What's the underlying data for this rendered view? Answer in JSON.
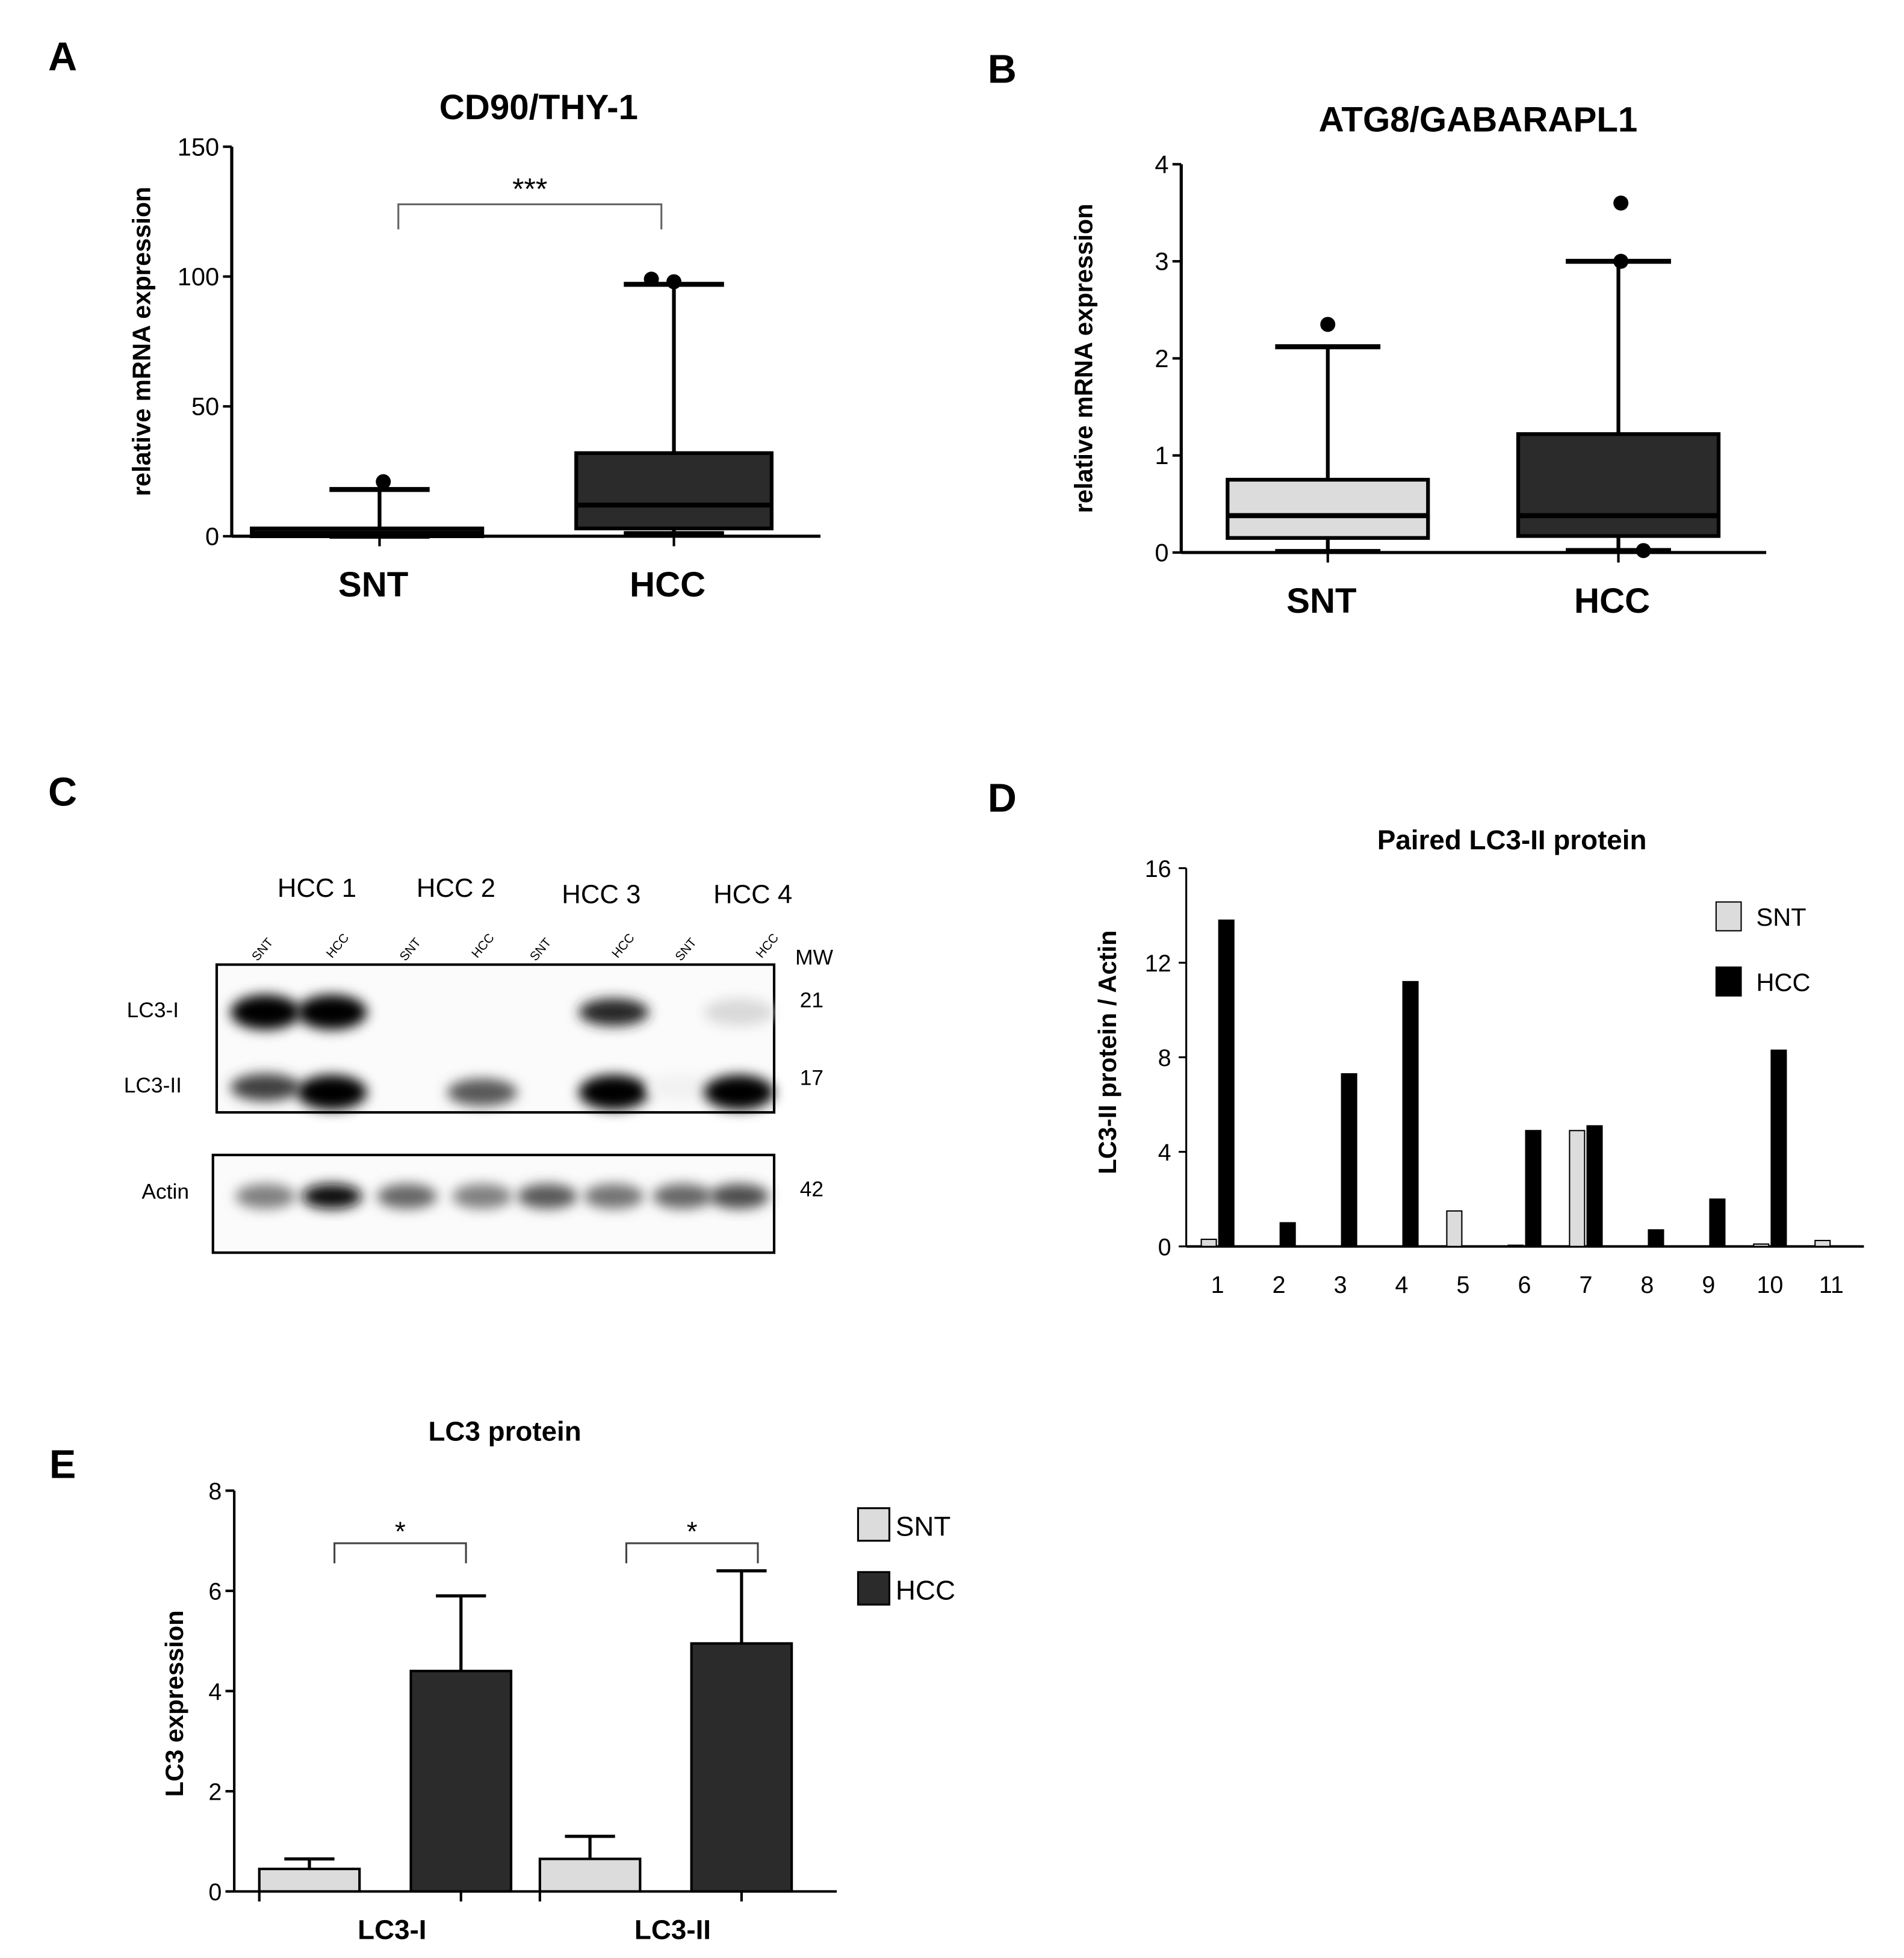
{
  "panel_labels": [
    "A",
    "B",
    "C",
    "D",
    "E"
  ],
  "colors": {
    "snt_fill": "#dcdcdc",
    "hcc_fill": "#2b2b2b",
    "hcc_black": "#000000",
    "axis": "#000000"
  },
  "chart_data": [
    {
      "id": "A",
      "type": "box",
      "title": "CD90/THY-1",
      "ylabel": "relative mRNA expression",
      "ylim": [
        0,
        150
      ],
      "yticks": [
        0,
        50,
        100,
        150
      ],
      "categories": [
        "SNT",
        "HCC"
      ],
      "boxes": [
        {
          "category": "SNT",
          "min": 0,
          "q1": 0,
          "median": 1,
          "q3": 3,
          "max": 18,
          "outliers": [
            21
          ],
          "fill": "#111111"
        },
        {
          "category": "HCC",
          "min": 1,
          "q1": 3,
          "median": 12,
          "q3": 32,
          "max": 97,
          "outliers": [
            99,
            98
          ],
          "fill": "#2b2b2b"
        }
      ],
      "significance": [
        {
          "from": "SNT",
          "to": "HCC",
          "label": "***"
        }
      ]
    },
    {
      "id": "B",
      "type": "box",
      "title": "ATG8/GABARAPL1",
      "ylabel": "relative mRNA expression",
      "ylim": [
        0,
        4
      ],
      "yticks": [
        0,
        1,
        2,
        3,
        4
      ],
      "categories": [
        "SNT",
        "HCC"
      ],
      "boxes": [
        {
          "category": "SNT",
          "min": 0.01,
          "q1": 0.15,
          "median": 0.38,
          "q3": 0.75,
          "max": 2.12,
          "outliers": [
            2.35
          ],
          "fill": "#dcdcdc"
        },
        {
          "category": "HCC",
          "min": 0.02,
          "q1": 0.17,
          "median": 0.38,
          "q3": 1.22,
          "max": 3.0,
          "outliers": [
            3.6,
            3.0,
            0.02
          ],
          "fill": "#2b2b2b"
        }
      ]
    },
    {
      "id": "D",
      "type": "bar",
      "title": "Paired LC3-II protein",
      "ylabel": "LC3-II protein / Actin",
      "ylim": [
        0,
        16
      ],
      "yticks": [
        0,
        4,
        8,
        12,
        16
      ],
      "categories": [
        "1",
        "2",
        "3",
        "4",
        "5",
        "6",
        "7",
        "8",
        "9",
        "10",
        "11"
      ],
      "series": [
        {
          "name": "SNT",
          "values": [
            0.3,
            0,
            0,
            0,
            1.5,
            0.05,
            4.9,
            0,
            0,
            0.1,
            0.25
          ],
          "color": "#dcdcdc"
        },
        {
          "name": "HCC",
          "values": [
            13.8,
            1.0,
            7.3,
            11.2,
            0,
            4.9,
            5.1,
            0.7,
            2.0,
            8.3,
            0
          ],
          "color": "#000000"
        }
      ],
      "legend": "top-right"
    },
    {
      "id": "E",
      "type": "bar",
      "title": "LC3 protein",
      "ylabel": "LC3 expression",
      "ylim": [
        0,
        8
      ],
      "yticks": [
        0,
        2,
        4,
        6,
        8
      ],
      "categories": [
        "LC3-I",
        "LC3-II"
      ],
      "series": [
        {
          "name": "SNT",
          "values": [
            0.45,
            0.65
          ],
          "errors": [
            0.2,
            0.45
          ],
          "color": "#dcdcdc"
        },
        {
          "name": "HCC",
          "values": [
            4.4,
            4.95
          ],
          "errors": [
            1.5,
            1.45
          ],
          "color": "#2b2b2b"
        }
      ],
      "significance": [
        {
          "category": "LC3-I",
          "label": "*"
        },
        {
          "category": "LC3-II",
          "label": "*"
        }
      ],
      "legend": "right"
    }
  ],
  "blot": {
    "groups": [
      "HCC 1",
      "HCC 2",
      "HCC 3",
      "HCC 4"
    ],
    "lanes": [
      "SNT",
      "HCC",
      "SNT",
      "HCC",
      "SNT",
      "HCC",
      "SNT",
      "HCC"
    ],
    "mw_label": "MW",
    "rows": [
      {
        "label": "LC3-I",
        "mw": "21",
        "intensity": [
          1.0,
          1.0,
          0,
          0,
          0,
          0.85,
          0,
          0.15
        ]
      },
      {
        "label": "LC3-II",
        "mw": "17",
        "intensity": [
          0.75,
          1.0,
          0,
          0.65,
          0,
          1.0,
          0.05,
          1.0
        ]
      },
      {
        "label": "Actin",
        "mw": "42",
        "intensity": [
          0.5,
          0.95,
          0.6,
          0.5,
          0.65,
          0.55,
          0.6,
          0.7
        ]
      }
    ]
  }
}
